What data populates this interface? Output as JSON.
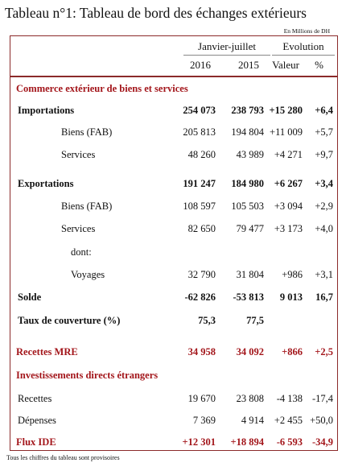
{
  "title": "Tableau n°1: Tableau de bord des échanges extérieurs",
  "unit": "En Millions de DH",
  "header": {
    "period": "Janvier-juillet",
    "evolution": "Evolution",
    "columns": [
      "2016",
      "2015",
      "Valeur",
      "%"
    ]
  },
  "rows": [
    [
      "Commerce extérieur de biens et services"
    ],
    [
      "Importations",
      "254 073",
      "238 793",
      "+15 280",
      "+6,4"
    ],
    [
      "Biens (FAB)",
      "205 813",
      "194 804",
      "+11 009",
      "+5,7"
    ],
    [
      "Services",
      "48 260",
      "43 989",
      "+4 271",
      "+9,7"
    ],
    [
      "Exportations",
      "191 247",
      "184 980",
      "+6 267",
      "+3,4"
    ],
    [
      "Biens (FAB)",
      "108 597",
      "105 503",
      "+3 094",
      "+2,9"
    ],
    [
      "Services",
      "82 650",
      "79 477",
      "+3 173",
      "+4,0"
    ],
    [
      "dont:"
    ],
    [
      "Voyages",
      "32 790",
      "31 804",
      "+986",
      "+3,1"
    ],
    [
      "Solde",
      "-62 826",
      "-53 813",
      "9 013",
      "16,7"
    ],
    [
      "Taux de couverture (%)",
      "75,3",
      "77,5"
    ],
    [
      "Recettes MRE",
      "34 958",
      "34 092",
      "+866",
      "+2,5"
    ],
    [
      "Investissements directs étrangers"
    ],
    [
      "Recettes",
      "19 670",
      "23 808",
      "-4 138",
      "-17,4"
    ],
    [
      "Dépenses",
      "7 369",
      "4 914",
      "+2 455",
      "+50,0"
    ],
    [
      "Flux IDE",
      "+12 301",
      "+18 894",
      "-6 593",
      "-34,9"
    ]
  ],
  "footnote": "Tous les chiffres du tableau sont provisoires"
}
